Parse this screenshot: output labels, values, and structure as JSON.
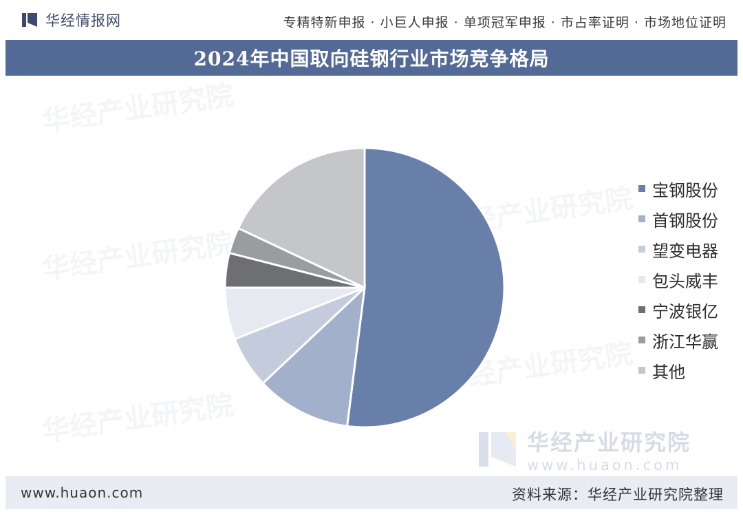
{
  "header": {
    "brand": "华经情报网",
    "services": "专精特新申报 · 小巨人申报 · 单项冠军申报 · 市占率证明 · 市场地位证明"
  },
  "chart_data": {
    "type": "pie",
    "title": "2024年中国取向硅钢行业市场竞争格局",
    "categories": [
      "宝钢股份",
      "首钢股份",
      "望变电器",
      "包头威丰",
      "宁波银亿",
      "浙江华赢",
      "其他"
    ],
    "values": [
      52,
      11,
      6,
      6,
      4,
      3,
      18
    ],
    "colors": [
      "#687fa9",
      "#a3b0cb",
      "#c4cbdd",
      "#e6e9f0",
      "#6d6f73",
      "#9b9c9f",
      "#c5c6c9"
    ],
    "legend_position": "right",
    "start_angle_deg": 0,
    "direction": "clockwise"
  },
  "watermarks": {
    "brand_main": "华经产业研究院",
    "brand_url": "www.huaon.com",
    "repeat_text": "华经产业研究院"
  },
  "footer": {
    "url": "www.huaon.com",
    "source": "资料来源：华经产业研究院整理"
  }
}
